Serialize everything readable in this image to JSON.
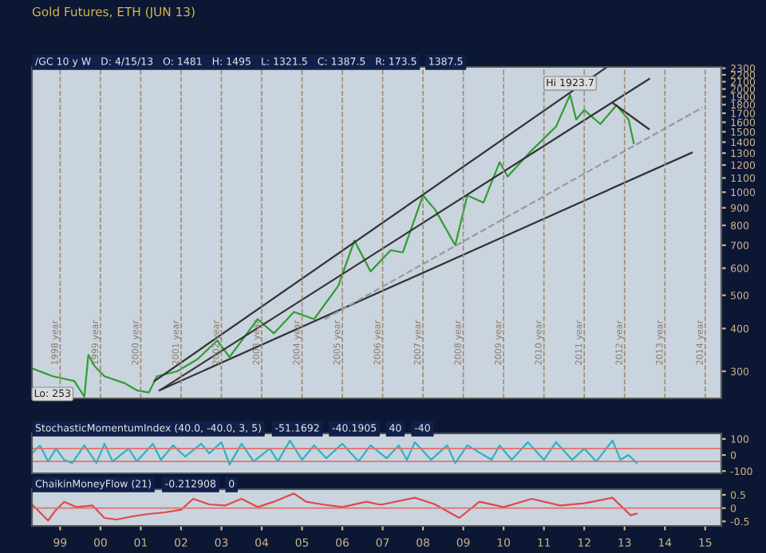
{
  "chart_data": [
    {
      "type": "line",
      "title": "Gold Futures, ETH (JUN 13)",
      "subtitle": "/GC 10 y W   D: 4/15/13   O: 1481   H: 1495   L: 1321.5   C: 1387.5   R: 173.5",
      "log": true,
      "xlim": [
        1998.3,
        2015.4
      ],
      "ylim": [
        250,
        2320
      ],
      "yticks": [
        300,
        400,
        500,
        600,
        700,
        800,
        900,
        1000,
        1100,
        1200,
        1300,
        1400,
        1500,
        1600,
        1700,
        1800,
        1900,
        2000,
        2100,
        2200,
        2300
      ],
      "tick_labels": "y",
      "grid": false,
      "legend": false,
      "series": [
        {
          "color": "#2f9e2f",
          "line_style": "solid",
          "x": [
            1998.33,
            1998.82,
            1999.35,
            1999.6,
            1999.7,
            1999.86,
            2000.1,
            2000.6,
            2000.9,
            2001.2,
            2001.4,
            2001.9,
            2002.4,
            2002.9,
            2003.2,
            2003.9,
            2004.3,
            2004.8,
            2005.3,
            2005.9,
            2006.3,
            2006.7,
            2007.2,
            2007.5,
            2008.0,
            2008.3,
            2008.8,
            2009.1,
            2009.5,
            2009.9,
            2010.1,
            2010.7,
            2011.0,
            2011.3,
            2011.65,
            2011.8,
            2012.0,
            2012.4,
            2012.8,
            2013.1,
            2013.23
          ],
          "values": [
            305,
            290,
            281,
            253,
            335,
            310,
            290,
            277,
            264,
            260,
            290,
            300,
            325,
            369,
            330,
            426,
            387,
            447,
            426,
            533,
            722,
            587,
            677,
            667,
            978,
            889,
            700,
            978,
            932,
            1223,
            1111,
            1325,
            1434,
            1554,
            1923.7,
            1630,
            1737,
            1580,
            1794,
            1630,
            1387.5
          ]
        },
        {
          "color": "#333333",
          "line_style": "solid",
          "x": [
            2001.34,
            2012.56
          ],
          "values": [
            281,
            2317
          ]
        },
        {
          "color": "#333333",
          "line_style": "solid",
          "x": [
            2001.47,
            2013.61
          ],
          "values": [
            264,
            2140
          ]
        },
        {
          "color": "#333333",
          "line_style": "solid",
          "x": [
            2001.47,
            2014.67
          ],
          "values": [
            264,
            1304
          ]
        },
        {
          "color": "#999999",
          "line_style": "dashed",
          "x": [
            2005.56,
            2014.93
          ],
          "values": [
            426,
            1766
          ]
        },
        {
          "color": "#333333",
          "line_style": "solid",
          "x": [
            2012.7,
            2013.6
          ],
          "values": [
            1823,
            1529
          ]
        }
      ],
      "ref_lines": [
        {
          "axis": "x",
          "value": 1999,
          "label": "1998 year",
          "color": "#a08c70",
          "line_style": "dashed"
        },
        {
          "axis": "x",
          "value": 2000,
          "label": "1999 year",
          "color": "#a08c70",
          "line_style": "dashed"
        },
        {
          "axis": "x",
          "value": 2001,
          "label": "2000 year",
          "color": "#a08c70",
          "line_style": "dashed"
        },
        {
          "axis": "x",
          "value": 2002,
          "label": "2001 year",
          "color": "#a08c70",
          "line_style": "dashed"
        },
        {
          "axis": "x",
          "value": 2003,
          "label": "2002 year",
          "color": "#a08c70",
          "line_style": "dashed"
        },
        {
          "axis": "x",
          "value": 2004,
          "label": "2003 year",
          "color": "#a08c70",
          "line_style": "dashed"
        },
        {
          "axis": "x",
          "value": 2005,
          "label": "2004 year",
          "color": "#a08c70",
          "line_style": "dashed"
        },
        {
          "axis": "x",
          "value": 2006,
          "label": "2005 year",
          "color": "#a08c70",
          "line_style": "dashed"
        },
        {
          "axis": "x",
          "value": 2007,
          "label": "2006 year",
          "color": "#a08c70",
          "line_style": "dashed"
        },
        {
          "axis": "x",
          "value": 2008,
          "label": "2007 year",
          "color": "#a08c70",
          "line_style": "dashed"
        },
        {
          "axis": "x",
          "value": 2009,
          "label": "2008 year",
          "color": "#a08c70",
          "line_style": "dashed"
        },
        {
          "axis": "x",
          "value": 2010,
          "label": "2009 year",
          "color": "#a08c70",
          "line_style": "dashed"
        },
        {
          "axis": "x",
          "value": 2011,
          "label": "2010 year",
          "color": "#a08c70",
          "line_style": "dashed"
        },
        {
          "axis": "x",
          "value": 2012,
          "label": "2011 year",
          "color": "#a08c70",
          "line_style": "dashed"
        },
        {
          "axis": "x",
          "value": 2013,
          "label": "2012 year",
          "color": "#a08c70",
          "line_style": "dashed"
        },
        {
          "axis": "x",
          "value": 2014,
          "label": "2013 year",
          "color": "#a08c70",
          "line_style": "dashed"
        },
        {
          "axis": "x",
          "value": 2015,
          "label": "2014 year",
          "color": "#a08c70",
          "line_style": "dashed"
        }
      ],
      "annotations": [
        {
          "text": "Hi 1923.7",
          "x": 2011.65,
          "y": 1923.7
        },
        {
          "text": "Lo: 253",
          "x": 1999.6,
          "y": 253
        },
        "1387.5"
      ]
    },
    {
      "type": "line",
      "title": "StochasticMomentumIndex (40.0, -40.0, 3, 5)",
      "annotations": [
        "-51.1692",
        "-40.1905",
        "40",
        "-40"
      ],
      "xlim": [
        1998.3,
        2015.4
      ],
      "ylim": [
        -114,
        134
      ],
      "yticks": [
        {
          "value": 100,
          "label": "100"
        },
        0,
        {
          "value": -100,
          "label": "-100"
        }
      ],
      "tick_labels": "y",
      "grid": false,
      "legend": false,
      "series": [
        {
          "color": "#2ab3c4",
          "line_style": "solid",
          "x": [
            1998.3,
            1998.5,
            1998.7,
            1998.9,
            1999.1,
            1999.3,
            1999.6,
            1999.9,
            2000.1,
            2000.3,
            2000.7,
            2000.9,
            2001.3,
            2001.5,
            2001.8,
            2002.1,
            2002.5,
            2002.7,
            2003.0,
            2003.2,
            2003.5,
            2003.8,
            2004.2,
            2004.4,
            2004.7,
            2005.0,
            2005.3,
            2005.6,
            2006.0,
            2006.4,
            2006.7,
            2007.1,
            2007.4,
            2007.6,
            2007.8,
            2008.2,
            2008.6,
            2008.8,
            2009.1,
            2009.7,
            2009.9,
            2010.2,
            2010.6,
            2011.0,
            2011.3,
            2011.7,
            2012.0,
            2012.3,
            2012.7,
            2012.9,
            2013.1,
            2013.3
          ],
          "values": [
            10,
            60,
            -40,
            40,
            -30,
            -50,
            60,
            -50,
            70,
            -40,
            40,
            -40,
            70,
            -30,
            60,
            -10,
            70,
            10,
            80,
            -60,
            70,
            -40,
            40,
            -40,
            90,
            -30,
            60,
            -20,
            70,
            -40,
            60,
            -20,
            60,
            -30,
            80,
            -30,
            60,
            -50,
            60,
            -30,
            60,
            -30,
            80,
            -30,
            80,
            -30,
            40,
            -40,
            90,
            -30,
            0,
            -50
          ]
        }
      ],
      "ref_lines": [
        {
          "axis": "y",
          "value": 40,
          "color": "#e07070"
        },
        {
          "axis": "y",
          "value": -40,
          "color": "#e07070"
        }
      ]
    },
    {
      "type": "line",
      "title": "ChaikinMoneyFlow (21)",
      "annotations": [
        "-0.212908",
        "0"
      ],
      "xlim": [
        1998.3,
        2015.4
      ],
      "xticks": [
        {
          "value": 1999,
          "label": "99"
        },
        {
          "value": 2000,
          "label": "00"
        },
        {
          "value": 2001,
          "label": "01"
        },
        {
          "value": 2002,
          "label": "02"
        },
        {
          "value": 2003,
          "label": "03"
        },
        {
          "value": 2004,
          "label": "04"
        },
        {
          "value": 2005,
          "label": "05"
        },
        {
          "value": 2006,
          "label": "06"
        },
        {
          "value": 2007,
          "label": "07"
        },
        {
          "value": 2008,
          "label": "08"
        },
        {
          "value": 2009,
          "label": "09"
        },
        {
          "value": 2010,
          "label": "10"
        },
        {
          "value": 2011,
          "label": "11"
        },
        {
          "value": 2012,
          "label": "12"
        },
        {
          "value": 2013,
          "label": "13"
        },
        {
          "value": 2014,
          "label": "14"
        },
        {
          "value": 2015,
          "label": "15"
        }
      ],
      "ylim": [
        -0.67,
        0.71
      ],
      "yticks": [
        0.5,
        0,
        {
          "value": -0.5,
          "label": "-0.5"
        }
      ],
      "grid": false,
      "legend": false,
      "series": [
        {
          "color": "#e04848",
          "line_style": "solid",
          "x": [
            1998.3,
            1998.5,
            1998.7,
            1998.9,
            1999.1,
            1999.4,
            1999.8,
            2000.1,
            2000.4,
            2000.8,
            2001.2,
            2001.6,
            2002.0,
            2002.3,
            2002.7,
            2003.1,
            2003.5,
            2003.9,
            2004.3,
            2004.8,
            2005.1,
            2005.5,
            2006.0,
            2006.6,
            2006.9,
            2007.0,
            2007.8,
            2008.3,
            2008.9,
            2009.4,
            2010.0,
            2010.7,
            2011.4,
            2012.0,
            2012.7,
            2013.15,
            2013.3
          ],
          "values": [
            0.14,
            -0.16,
            -0.47,
            -0.06,
            0.24,
            0.04,
            0.1,
            -0.37,
            -0.43,
            -0.31,
            -0.22,
            -0.16,
            -0.06,
            0.35,
            0.14,
            0.1,
            0.35,
            0.04,
            0.24,
            0.55,
            0.24,
            0.14,
            0.04,
            0.24,
            0.14,
            0.14,
            0.39,
            0.14,
            -0.37,
            0.24,
            0.04,
            0.35,
            0.1,
            0.18,
            0.39,
            -0.27,
            -0.21
          ]
        }
      ],
      "ref_lines": [
        {
          "axis": "y",
          "value": 0,
          "color": "#e07070"
        }
      ]
    }
  ]
}
